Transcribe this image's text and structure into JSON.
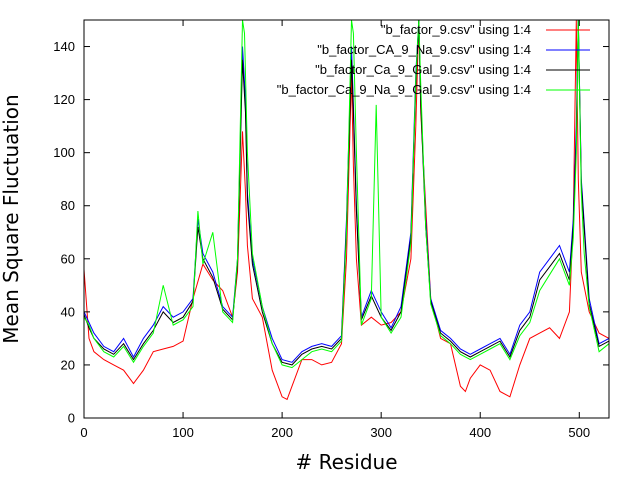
{
  "chart_data": {
    "type": "line",
    "title": "",
    "xlabel": "# Residue",
    "ylabel": "Mean Square Fluctuation",
    "xlim": [
      0,
      530
    ],
    "ylim": [
      0,
      150
    ],
    "xticks": [
      0,
      100,
      200,
      300,
      400,
      500
    ],
    "yticks": [
      0,
      20,
      40,
      60,
      80,
      100,
      120,
      140
    ],
    "grid": false,
    "legend_position": "top-right",
    "series": [
      {
        "name": "\"b_factor_9.csv\" using 1:4",
        "color": "#ff0000",
        "x": [
          0,
          5,
          10,
          20,
          30,
          40,
          50,
          60,
          70,
          80,
          90,
          100,
          110,
          120,
          130,
          140,
          150,
          155,
          160,
          163,
          165,
          170,
          180,
          190,
          200,
          205,
          210,
          220,
          230,
          240,
          250,
          260,
          265,
          270,
          272,
          275,
          280,
          290,
          300,
          310,
          320,
          330,
          335,
          338,
          340,
          345,
          350,
          360,
          370,
          380,
          385,
          390,
          400,
          410,
          420,
          430,
          440,
          450,
          460,
          470,
          480,
          490,
          494,
          497,
          499,
          502,
          510,
          520,
          530
        ],
        "y": [
          56,
          30,
          25,
          22,
          20,
          18,
          13,
          18,
          25,
          26,
          27,
          29,
          45,
          58,
          52,
          48,
          38,
          55,
          108,
          85,
          65,
          45,
          38,
          18,
          8,
          7,
          12,
          22,
          22,
          20,
          21,
          28,
          60,
          130,
          95,
          60,
          35,
          38,
          35,
          36,
          40,
          60,
          110,
          150,
          115,
          80,
          45,
          30,
          28,
          12,
          10,
          15,
          20,
          18,
          10,
          8,
          20,
          30,
          32,
          34,
          30,
          40,
          75,
          150,
          90,
          55,
          40,
          32,
          30
        ]
      },
      {
        "name": "\"b_factor_CA_9_Na_9.csv\" using 1:4",
        "color": "#0000ff",
        "x": [
          0,
          5,
          10,
          20,
          30,
          40,
          50,
          60,
          70,
          80,
          90,
          100,
          110,
          115,
          120,
          130,
          140,
          150,
          155,
          160,
          163,
          165,
          170,
          180,
          190,
          200,
          210,
          220,
          230,
          240,
          250,
          260,
          265,
          270,
          272,
          275,
          280,
          290,
          300,
          310,
          320,
          330,
          335,
          338,
          340,
          345,
          350,
          360,
          370,
          380,
          390,
          400,
          410,
          420,
          430,
          440,
          450,
          460,
          470,
          480,
          490,
          494,
          497,
          499,
          502,
          510,
          520,
          530
        ],
        "y": [
          40,
          36,
          32,
          27,
          25,
          30,
          23,
          30,
          35,
          42,
          38,
          40,
          45,
          75,
          62,
          55,
          42,
          38,
          60,
          140,
          120,
          85,
          60,
          42,
          30,
          22,
          21,
          25,
          27,
          28,
          27,
          31,
          75,
          140,
          118,
          80,
          38,
          48,
          40,
          34,
          42,
          70,
          130,
          150,
          120,
          75,
          45,
          33,
          30,
          26,
          24,
          26,
          28,
          30,
          24,
          35,
          40,
          55,
          60,
          65,
          55,
          75,
          110,
          150,
          90,
          45,
          28,
          30
        ]
      },
      {
        "name": "\"b_factor_Ca_9_Gal_9.csv\" using 1:4",
        "color": "#000000",
        "x": [
          0,
          5,
          10,
          20,
          30,
          40,
          50,
          60,
          70,
          80,
          90,
          100,
          110,
          115,
          120,
          130,
          140,
          150,
          155,
          160,
          163,
          165,
          170,
          180,
          190,
          200,
          210,
          220,
          230,
          240,
          250,
          260,
          265,
          270,
          272,
          275,
          280,
          290,
          300,
          310,
          320,
          330,
          335,
          338,
          340,
          345,
          350,
          360,
          370,
          380,
          390,
          400,
          410,
          420,
          430,
          440,
          450,
          460,
          470,
          480,
          490,
          494,
          497,
          499,
          502,
          510,
          520,
          530
        ],
        "y": [
          39,
          34,
          30,
          26,
          24,
          28,
          22,
          28,
          33,
          40,
          36,
          38,
          44,
          72,
          60,
          53,
          41,
          37,
          58,
          135,
          115,
          82,
          58,
          40,
          28,
          21,
          20,
          24,
          26,
          27,
          26,
          30,
          72,
          135,
          115,
          78,
          37,
          46,
          38,
          33,
          40,
          68,
          125,
          150,
          118,
          72,
          44,
          32,
          29,
          25,
          23,
          25,
          27,
          29,
          23,
          33,
          38,
          52,
          57,
          62,
          52,
          72,
          105,
          150,
          88,
          43,
          27,
          29
        ]
      },
      {
        "name": "\"b_factor_Ca_9_Na_9_Gal_9.csv\" using 1:4",
        "color": "#00ff00",
        "x": [
          0,
          5,
          10,
          20,
          30,
          40,
          50,
          60,
          70,
          80,
          90,
          100,
          110,
          115,
          120,
          130,
          140,
          150,
          155,
          160,
          162,
          165,
          170,
          180,
          190,
          200,
          210,
          220,
          230,
          240,
          250,
          260,
          265,
          270,
          272,
          275,
          280,
          290,
          295,
          300,
          310,
          320,
          330,
          335,
          338,
          340,
          345,
          350,
          360,
          370,
          380,
          390,
          400,
          410,
          420,
          430,
          440,
          450,
          460,
          470,
          480,
          490,
          494,
          497,
          499,
          502,
          505,
          510,
          520,
          530
        ],
        "y": [
          38,
          35,
          30,
          25,
          23,
          27,
          21,
          27,
          32,
          50,
          35,
          37,
          42,
          78,
          58,
          70,
          40,
          36,
          60,
          150,
          145,
          100,
          62,
          42,
          28,
          20,
          19,
          22,
          25,
          26,
          25,
          29,
          70,
          150,
          145,
          100,
          35,
          45,
          118,
          38,
          32,
          38,
          66,
          128,
          150,
          125,
          72,
          43,
          31,
          28,
          24,
          22,
          24,
          26,
          28,
          22,
          31,
          36,
          48,
          54,
          60,
          50,
          68,
          100,
          150,
          85,
          62,
          42,
          25,
          28
        ]
      }
    ]
  }
}
